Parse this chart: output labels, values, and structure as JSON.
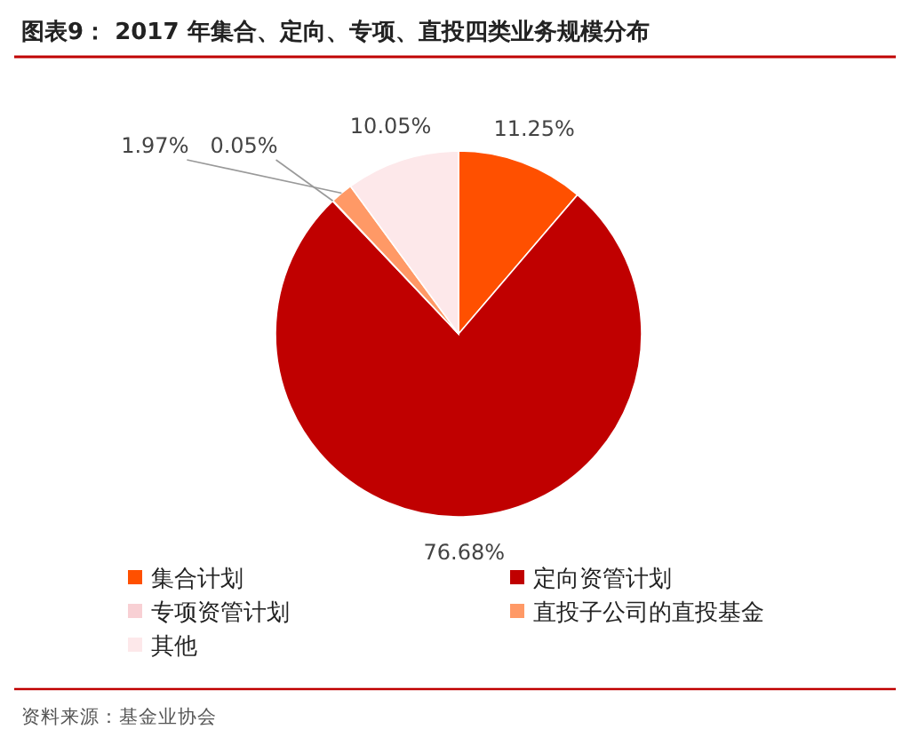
{
  "chart_data": {
    "type": "pie",
    "title": "图表9： 2017 年集合、定向、专项、直投四类业务规模分布",
    "categories": [
      "集合计划",
      "定向资管计划",
      "专项资管计划",
      "直投子公司的直投基金",
      "其他"
    ],
    "values": [
      11.25,
      76.68,
      0.05,
      1.97,
      10.05
    ],
    "colors": [
      "#ff5000",
      "#c00000",
      "#f8d0d4",
      "#ff9966",
      "#fde8ea"
    ],
    "value_labels": [
      "11.25%",
      "76.68%",
      "0.05%",
      "1.97%",
      "10.05%"
    ],
    "legend": "bottom",
    "annotations": [
      "资料来源：基金业协会"
    ]
  }
}
